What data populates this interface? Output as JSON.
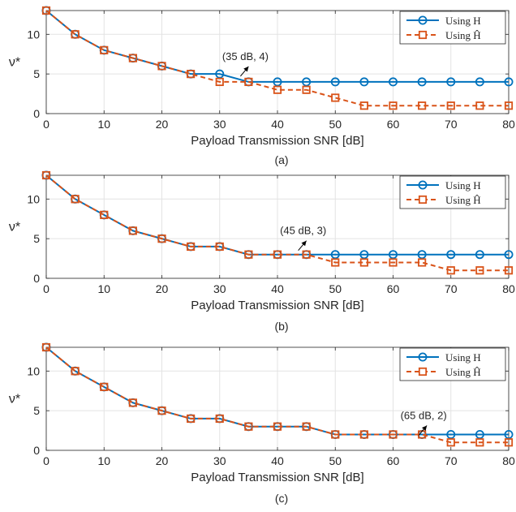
{
  "chart_data": [
    {
      "type": "line",
      "caption": "(a)",
      "xlabel": "Payload Transmission SNR [dB]",
      "ylabel": "ν*",
      "xlim": [
        0,
        80
      ],
      "ylim": [
        0,
        13
      ],
      "xticks": [
        0,
        10,
        20,
        30,
        40,
        50,
        60,
        70,
        80
      ],
      "yticks": [
        0,
        5,
        10
      ],
      "grid": true,
      "legend_position": "top-right",
      "x": [
        0,
        5,
        10,
        15,
        20,
        25,
        30,
        35,
        40,
        45,
        50,
        55,
        60,
        65,
        70,
        75,
        80
      ],
      "series": [
        {
          "name": "Using H",
          "values": [
            13,
            10,
            8,
            7,
            6,
            5,
            5,
            4,
            4,
            4,
            4,
            4,
            4,
            4,
            4,
            4,
            4
          ]
        },
        {
          "name": "Using Ĥ",
          "values": [
            13,
            10,
            8,
            7,
            6,
            5,
            4,
            4,
            3,
            3,
            2,
            1,
            1,
            1,
            1,
            1,
            1
          ]
        }
      ],
      "annotation": {
        "text": "(35 dB, 4)",
        "x": 35,
        "y": 4
      }
    },
    {
      "type": "line",
      "caption": "(b)",
      "xlabel": "Payload Transmission SNR [dB]",
      "ylabel": "ν*",
      "xlim": [
        0,
        80
      ],
      "ylim": [
        0,
        13
      ],
      "xticks": [
        0,
        10,
        20,
        30,
        40,
        50,
        60,
        70,
        80
      ],
      "yticks": [
        0,
        5,
        10
      ],
      "grid": true,
      "legend_position": "top-right",
      "x": [
        0,
        5,
        10,
        15,
        20,
        25,
        30,
        35,
        40,
        45,
        50,
        55,
        60,
        65,
        70,
        75,
        80
      ],
      "series": [
        {
          "name": "Using H",
          "values": [
            13,
            10,
            8,
            6,
            5,
            4,
            4,
            3,
            3,
            3,
            3,
            3,
            3,
            3,
            3,
            3,
            3
          ]
        },
        {
          "name": "Using Ĥ",
          "values": [
            13,
            10,
            8,
            6,
            5,
            4,
            4,
            3,
            3,
            3,
            2,
            2,
            2,
            2,
            1,
            1,
            1
          ]
        }
      ],
      "annotation": {
        "text": "(45 dB, 3)",
        "x": 45,
        "y": 3
      }
    },
    {
      "type": "line",
      "caption": "(c)",
      "xlabel": "Payload Transmission SNR [dB]",
      "ylabel": "ν*",
      "xlim": [
        0,
        80
      ],
      "ylim": [
        0,
        13
      ],
      "xticks": [
        0,
        10,
        20,
        30,
        40,
        50,
        60,
        70,
        80
      ],
      "yticks": [
        0,
        5,
        10
      ],
      "grid": true,
      "legend_position": "top-right",
      "x": [
        0,
        5,
        10,
        15,
        20,
        25,
        30,
        35,
        40,
        45,
        50,
        55,
        60,
        65,
        70,
        75,
        80
      ],
      "series": [
        {
          "name": "Using H",
          "values": [
            13,
            10,
            8,
            6,
            5,
            4,
            4,
            3,
            3,
            3,
            2,
            2,
            2,
            2,
            2,
            2,
            2
          ]
        },
        {
          "name": "Using Ĥ",
          "values": [
            13,
            10,
            8,
            6,
            5,
            4,
            4,
            3,
            3,
            3,
            2,
            2,
            2,
            2,
            1,
            1,
            1
          ]
        }
      ],
      "annotation": {
        "text": "(65 dB, 2)",
        "x": 65,
        "y": 2
      }
    }
  ],
  "colors": {
    "series_H": "#0072BD",
    "series_Hhat": "#D95319",
    "grid": "#e3e3e3",
    "axis": "#262626"
  }
}
